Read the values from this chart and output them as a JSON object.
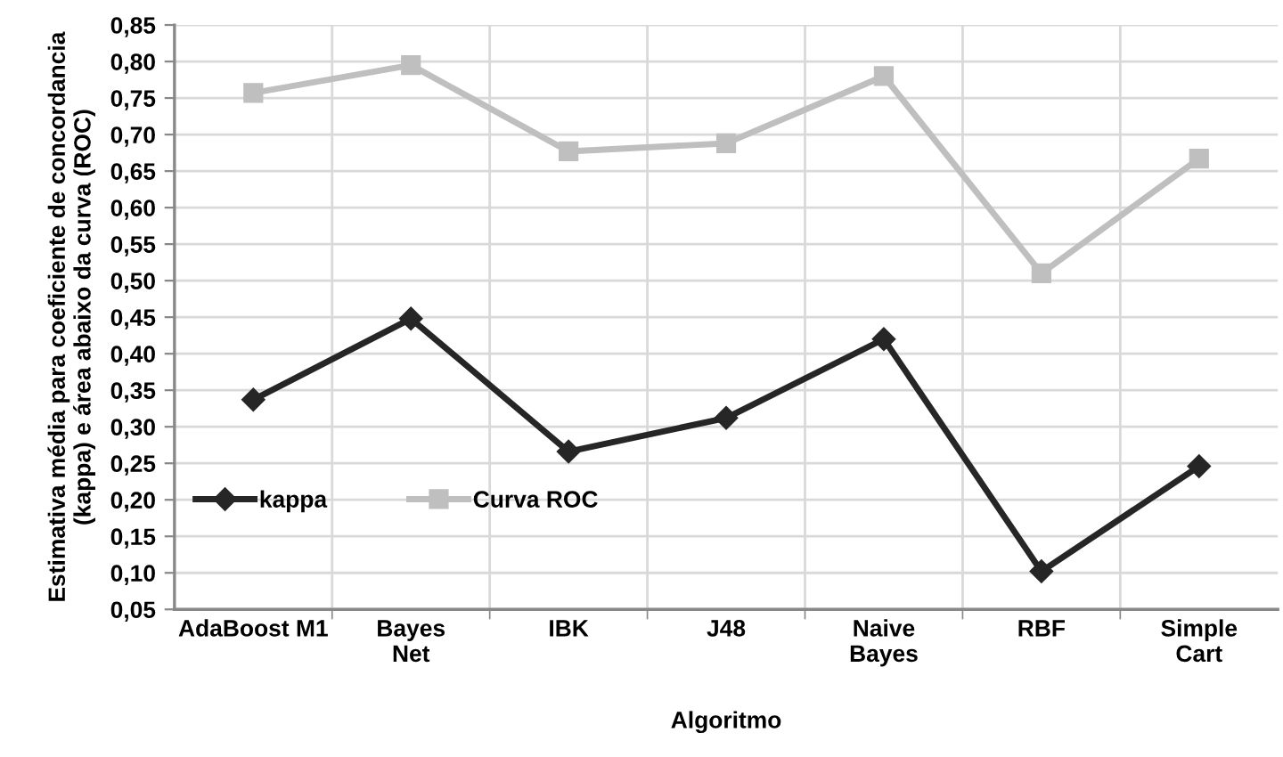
{
  "chart_data": {
    "type": "line",
    "xlabel": "Algoritmo",
    "ylabel": "Estimativa média para coeficiente de concordancia\n(kappa) e área abaixo da curva (ROC)",
    "categories": [
      "AdaBoost M1",
      "Bayes\nNet",
      "IBK",
      "J48",
      "Naive\nBayes",
      "RBF",
      "Simple\nCart"
    ],
    "series": [
      {
        "name": "kappa",
        "color": "#262626",
        "marker": "diamond",
        "values": [
          0.337,
          0.448,
          0.266,
          0.312,
          0.42,
          0.102,
          0.246
        ]
      },
      {
        "name": "Curva ROC",
        "color": "#bfbfbf",
        "marker": "square",
        "values": [
          0.757,
          0.795,
          0.677,
          0.688,
          0.78,
          0.51,
          0.667
        ]
      }
    ],
    "ylim": [
      0.05,
      0.85
    ],
    "yticks": [
      {
        "value": 0.05,
        "label": "0,05"
      },
      {
        "value": 0.1,
        "label": "0,10"
      },
      {
        "value": 0.15,
        "label": "0,15"
      },
      {
        "value": 0.2,
        "label": "0,20"
      },
      {
        "value": 0.25,
        "label": "0,25"
      },
      {
        "value": 0.3,
        "label": "0,30"
      },
      {
        "value": 0.35,
        "label": "0,35"
      },
      {
        "value": 0.4,
        "label": "0,40"
      },
      {
        "value": 0.45,
        "label": "0,45"
      },
      {
        "value": 0.5,
        "label": "0,50"
      },
      {
        "value": 0.55,
        "label": "0,55"
      },
      {
        "value": 0.6,
        "label": "0,60"
      },
      {
        "value": 0.65,
        "label": "0,65"
      },
      {
        "value": 0.7,
        "label": "0,70"
      },
      {
        "value": 0.75,
        "label": "0,75"
      },
      {
        "value": 0.8,
        "label": "0,80"
      },
      {
        "value": 0.85,
        "label": "0,85"
      }
    ],
    "grid": true,
    "legend": "bottom left",
    "line_style": "solid"
  }
}
